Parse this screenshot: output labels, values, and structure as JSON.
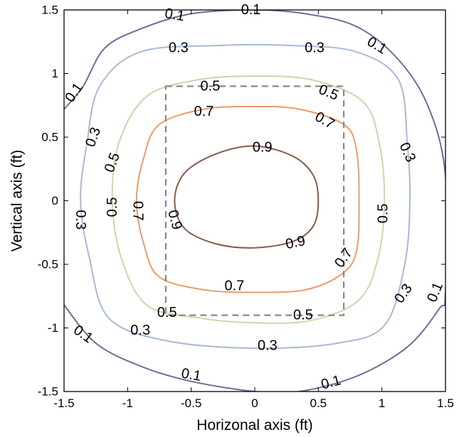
{
  "chart_data": {
    "type": "contour",
    "title": "",
    "xlabel": "Horizonal axis (ft)",
    "ylabel": "Vertical axis (ft)",
    "xlim": [
      -1.5,
      1.5
    ],
    "ylim": [
      -1.5,
      1.5
    ],
    "xticks": [
      -1.5,
      -1,
      -0.5,
      0,
      0.5,
      1,
      1.5
    ],
    "yticks": [
      -1.5,
      -1,
      -0.5,
      0,
      0.5,
      1,
      1.5
    ],
    "xtick_labels": [
      "-1.5",
      "-1",
      "-0.5",
      "0",
      "0.5",
      "1",
      "1.5"
    ],
    "ytick_labels": [
      "-1.5",
      "-1",
      "-0.5",
      "0",
      "0.5",
      "1",
      "1.5"
    ],
    "grid": false,
    "levels": [
      {
        "value": 0.9,
        "color": "#8a5a4c",
        "points": [
          [
            0.5,
            0
          ],
          [
            0.46,
            0.2
          ],
          [
            0.3,
            0.35
          ],
          [
            0,
            0.43
          ],
          [
            -0.3,
            0.37
          ],
          [
            -0.55,
            0.22
          ],
          [
            -0.63,
            0
          ],
          [
            -0.55,
            -0.22
          ],
          [
            -0.3,
            -0.34
          ],
          [
            0,
            -0.37
          ],
          [
            0.3,
            -0.32
          ],
          [
            0.46,
            -0.2
          ]
        ],
        "labels": [
          {
            "text": "0.9",
            "x": 0.06,
            "y": 0.42,
            "rotate": 0
          },
          {
            "text": "0.9",
            "x": -0.63,
            "y": -0.15,
            "rotate": 75
          },
          {
            "text": "0.9",
            "x": 0.32,
            "y": -0.33,
            "rotate": -12
          }
        ]
      },
      {
        "value": 0.7,
        "color": "#ec9a6a",
        "points": [
          [
            0.82,
            0
          ],
          [
            0.8,
            0.4
          ],
          [
            0.7,
            0.6
          ],
          [
            0.35,
            0.72
          ],
          [
            0,
            0.74
          ],
          [
            -0.4,
            0.72
          ],
          [
            -0.75,
            0.6
          ],
          [
            -0.87,
            0.35
          ],
          [
            -0.93,
            0
          ],
          [
            -0.87,
            -0.35
          ],
          [
            -0.75,
            -0.6
          ],
          [
            -0.4,
            -0.7
          ],
          [
            0,
            -0.72
          ],
          [
            0.4,
            -0.7
          ],
          [
            0.68,
            -0.58
          ],
          [
            0.8,
            -0.4
          ]
        ],
        "labels": [
          {
            "text": "0.7",
            "x": -0.4,
            "y": 0.7,
            "rotate": 0
          },
          {
            "text": "0.7",
            "x": 0.55,
            "y": 0.63,
            "rotate": 30
          },
          {
            "text": "0.7",
            "x": -0.92,
            "y": -0.08,
            "rotate": 90
          },
          {
            "text": "0.7",
            "x": -0.16,
            "y": -0.67,
            "rotate": 0
          },
          {
            "text": "0.7",
            "x": 0.7,
            "y": -0.45,
            "rotate": -55
          }
        ]
      },
      {
        "value": 0.5,
        "color": "#c9d8a8",
        "points": [
          [
            1.02,
            0
          ],
          [
            0.98,
            0.45
          ],
          [
            0.85,
            0.78
          ],
          [
            0.45,
            0.95
          ],
          [
            0,
            0.98
          ],
          [
            -0.45,
            0.95
          ],
          [
            -0.85,
            0.82
          ],
          [
            -1.07,
            0.45
          ],
          [
            -1.12,
            0
          ],
          [
            -1.05,
            -0.45
          ],
          [
            -0.85,
            -0.82
          ],
          [
            -0.45,
            -0.92
          ],
          [
            0,
            -0.96
          ],
          [
            0.45,
            -0.94
          ],
          [
            0.82,
            -0.78
          ],
          [
            0.97,
            -0.45
          ]
        ],
        "labels": [
          {
            "text": "0.5",
            "x": -0.35,
            "y": 0.9,
            "rotate": 0
          },
          {
            "text": "0.5",
            "x": 0.58,
            "y": 0.85,
            "rotate": 22
          },
          {
            "text": "0.5",
            "x": -1.12,
            "y": 0.3,
            "rotate": -70
          },
          {
            "text": "0.5",
            "x": -1.12,
            "y": -0.05,
            "rotate": -90
          },
          {
            "text": "0.5",
            "x": 1.01,
            "y": -0.1,
            "rotate": -90
          },
          {
            "text": "0.5",
            "x": -0.69,
            "y": -0.88,
            "rotate": 0
          },
          {
            "text": "0.5",
            "x": 0.38,
            "y": -0.9,
            "rotate": 0
          }
        ]
      },
      {
        "value": 0.3,
        "color": "#a8b9d4",
        "points": [
          [
            1.22,
            0
          ],
          [
            1.2,
            0.45
          ],
          [
            1.13,
            0.95
          ],
          [
            0.8,
            1.17
          ],
          [
            0.3,
            1.22
          ],
          [
            -0.3,
            1.22
          ],
          [
            -0.9,
            1.17
          ],
          [
            -1.22,
            0.9
          ],
          [
            -1.32,
            0.45
          ],
          [
            -1.37,
            0
          ],
          [
            -1.3,
            -0.45
          ],
          [
            -1.15,
            -0.92
          ],
          [
            -0.7,
            -1.1
          ],
          [
            0,
            -1.16
          ],
          [
            0.65,
            -1.12
          ],
          [
            1.02,
            -0.98
          ],
          [
            1.18,
            -0.5
          ]
        ],
        "labels": [
          {
            "text": "0.3",
            "x": -0.6,
            "y": 1.2,
            "rotate": 0
          },
          {
            "text": "0.3",
            "x": 0.47,
            "y": 1.2,
            "rotate": 0
          },
          {
            "text": "0.3",
            "x": -1.27,
            "y": 0.5,
            "rotate": -70
          },
          {
            "text": "0.3",
            "x": -1.37,
            "y": -0.15,
            "rotate": 90
          },
          {
            "text": "0.3",
            "x": 1.2,
            "y": 0.38,
            "rotate": 65
          },
          {
            "text": "0.3",
            "x": 1.17,
            "y": -0.73,
            "rotate": -55
          },
          {
            "text": "0.3",
            "x": -0.9,
            "y": -1.02,
            "rotate": 0
          },
          {
            "text": "0.3",
            "x": 0.1,
            "y": -1.14,
            "rotate": 0
          }
        ]
      },
      {
        "value": 0.1,
        "color": "#6a6f99",
        "points": [
          [
            -1.5,
            -0.82
          ],
          [
            -1.25,
            -1.12
          ],
          [
            -0.9,
            -1.3
          ],
          [
            -0.5,
            -1.42
          ],
          [
            0,
            -1.5
          ],
          [
            0.35,
            -1.5
          ],
          [
            0.8,
            -1.38
          ],
          [
            1.2,
            -1.15
          ],
          [
            1.45,
            -0.85
          ],
          [
            1.5,
            -0.72
          ],
          [
            1.5,
            0.2
          ],
          [
            1.36,
            0.75
          ],
          [
            1.12,
            1.12
          ],
          [
            0.8,
            1.37
          ],
          [
            0.4,
            1.47
          ],
          [
            0,
            1.5
          ],
          [
            -0.5,
            1.47
          ],
          [
            -0.9,
            1.35
          ],
          [
            -1.18,
            1.2
          ],
          [
            -1.35,
            0.9
          ],
          [
            -1.5,
            0.72
          ]
        ],
        "labels": [
          {
            "text": "0.1",
            "x": -0.63,
            "y": 1.46,
            "rotate": 10
          },
          {
            "text": "0.1",
            "x": -0.03,
            "y": 1.5,
            "rotate": 0
          },
          {
            "text": "0.1",
            "x": 0.96,
            "y": 1.22,
            "rotate": 30
          },
          {
            "text": "0.1",
            "x": -1.42,
            "y": 0.85,
            "rotate": -55
          },
          {
            "text": "0.1",
            "x": 1.42,
            "y": -0.72,
            "rotate": -68
          },
          {
            "text": "0.1",
            "x": -1.35,
            "y": -1.05,
            "rotate": 35
          },
          {
            "text": "0.1",
            "x": -0.5,
            "y": -1.37,
            "rotate": 10
          },
          {
            "text": "0.1",
            "x": 0.6,
            "y": -1.43,
            "rotate": -15
          }
        ]
      }
    ],
    "rectangle": {
      "x0": -0.7,
      "x1": 0.7,
      "y0": -0.9,
      "y1": 0.9,
      "color": "#888888",
      "style": "dashed"
    }
  }
}
